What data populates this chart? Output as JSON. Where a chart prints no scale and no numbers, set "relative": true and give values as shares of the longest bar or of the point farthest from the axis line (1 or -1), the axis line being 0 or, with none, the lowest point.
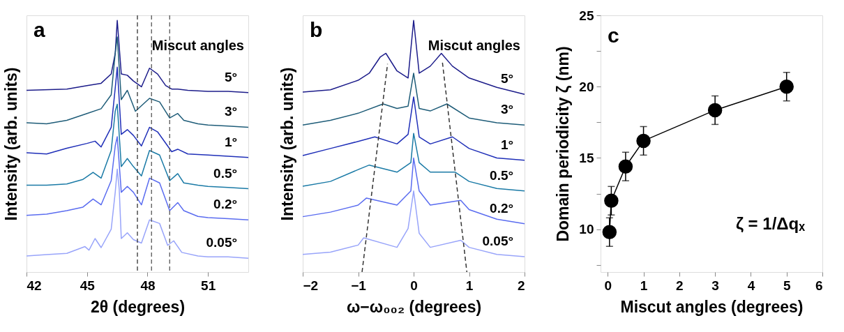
{
  "chart_data": [
    {
      "type": "line",
      "relative": true,
      "xlabel": "2θ (degrees)",
      "ylabel": "Intensity (arb. units)",
      "xlim": [
        42,
        53
      ],
      "xticks": [
        42,
        45,
        48,
        51
      ],
      "grid": false,
      "line_style": "solid",
      "annotations": [
        "a",
        "Miscut angles"
      ],
      "ref_lines": [
        {
          "axis": "x",
          "value": 47.5,
          "line_style": "dashed",
          "color": "#333333"
        },
        {
          "axis": "x",
          "value": 48.2,
          "line_style": "dashed",
          "color": "#555555"
        },
        {
          "axis": "x",
          "value": 49.1,
          "line_style": "dashed",
          "color": "#555555"
        }
      ],
      "series": [
        {
          "name": "5°",
          "color": "#1c1c8a",
          "x": [
            42,
            44,
            45,
            45.7,
            46.2,
            46.4,
            46.5,
            46.7,
            47.0,
            47.3,
            47.7,
            48.1,
            48.5,
            48.9,
            49.2,
            49.5,
            50,
            51,
            52,
            53
          ],
          "values": [
            0.722,
            0.727,
            0.741,
            0.75,
            0.787,
            0.869,
            1.0,
            0.787,
            0.782,
            0.759,
            0.736,
            0.81,
            0.787,
            0.741,
            0.727,
            0.727,
            0.722,
            0.718,
            0.718,
            0.713
          ]
        },
        {
          "name": "3°",
          "color": "#1e5c78",
          "x": [
            42,
            43,
            44,
            45,
            45.7,
            46.2,
            46.4,
            46.5,
            46.7,
            47.0,
            47.4,
            48.1,
            48.6,
            49.1,
            49.5,
            49.8,
            50.5,
            51,
            52,
            53
          ],
          "values": [
            0.593,
            0.589,
            0.603,
            0.63,
            0.649,
            0.704,
            0.869,
            0.934,
            0.685,
            0.722,
            0.639,
            0.69,
            0.676,
            0.612,
            0.63,
            0.603,
            0.589,
            0.584,
            0.58,
            0.575
          ]
        },
        {
          "name": "1°",
          "color": "#1f2fb8",
          "x": [
            42,
            43,
            44,
            45,
            45.4,
            45.7,
            46.2,
            46.4,
            46.5,
            46.7,
            47.0,
            47.3,
            47.7,
            48.1,
            48.5,
            49.0,
            49.2,
            49.5,
            50,
            51,
            52,
            53
          ],
          "values": [
            0.474,
            0.469,
            0.492,
            0.511,
            0.52,
            0.497,
            0.575,
            0.731,
            0.814,
            0.547,
            0.566,
            0.543,
            0.501,
            0.575,
            0.557,
            0.501,
            0.478,
            0.488,
            0.469,
            0.465,
            0.46,
            0.455
          ]
        },
        {
          "name": "0.5°",
          "color": "#1a7aa6",
          "x": [
            42,
            43,
            44,
            44.8,
            45.3,
            45.7,
            46.2,
            46.4,
            46.5,
            46.7,
            47.0,
            47.3,
            47.7,
            48.1,
            48.6,
            49.1,
            49.5,
            49.8,
            50.5,
            51,
            52,
            53
          ],
          "values": [
            0.345,
            0.345,
            0.35,
            0.368,
            0.396,
            0.373,
            0.483,
            0.639,
            0.667,
            0.419,
            0.451,
            0.419,
            0.382,
            0.483,
            0.465,
            0.363,
            0.391,
            0.354,
            0.345,
            0.34,
            0.336,
            0.331
          ]
        },
        {
          "name": "0.2°",
          "color": "#5a6cf0",
          "x": [
            42,
            43,
            44,
            44.8,
            45.3,
            45.7,
            46.2,
            46.4,
            46.5,
            46.7,
            47.0,
            47.3,
            47.7,
            48.1,
            48.6,
            49.1,
            49.5,
            49.8,
            50.5,
            51,
            52,
            53
          ],
          "values": [
            0.225,
            0.23,
            0.244,
            0.258,
            0.29,
            0.267,
            0.363,
            0.501,
            0.538,
            0.317,
            0.34,
            0.317,
            0.267,
            0.373,
            0.354,
            0.244,
            0.276,
            0.244,
            0.221,
            0.216,
            0.212,
            0.207
          ]
        },
        {
          "name": "0.05°",
          "color": "#98a4fa",
          "x": [
            42,
            43,
            44,
            44.9,
            45.1,
            45.4,
            45.7,
            46.2,
            46.4,
            46.5,
            46.6,
            46.7,
            47.0,
            47.3,
            47.7,
            48.1,
            48.6,
            49.0,
            49.3,
            49.7,
            50.5,
            51,
            52,
            53
          ],
          "values": [
            0.064,
            0.069,
            0.074,
            0.101,
            0.087,
            0.133,
            0.097,
            0.17,
            0.317,
            0.409,
            0.327,
            0.133,
            0.156,
            0.129,
            0.115,
            0.207,
            0.193,
            0.106,
            0.124,
            0.078,
            0.064,
            0.06,
            0.06,
            0.055
          ]
        }
      ]
    },
    {
      "type": "line",
      "relative": true,
      "xlabel": "ω−ω₀₀₂ (degrees)",
      "ylabel": "Intensity (arb. units)",
      "xlim": [
        -2,
        2
      ],
      "xticks": [
        -2,
        -1,
        0,
        1,
        2
      ],
      "grid": false,
      "line_style": "solid",
      "annotations": [
        "b",
        "Miscut angles"
      ],
      "series": [
        {
          "name": "5°",
          "color": "#1c1c8a",
          "x": [
            -2,
            -1.5,
            -1.0,
            -0.8,
            -0.6,
            -0.5,
            -0.3,
            -0.1,
            0,
            0.1,
            0.3,
            0.5,
            0.7,
            1.0,
            1.5,
            2
          ],
          "values": [
            0.715,
            0.724,
            0.762,
            0.79,
            0.855,
            0.869,
            0.799,
            0.771,
            1.0,
            0.79,
            0.818,
            0.869,
            0.818,
            0.771,
            0.734,
            0.706
          ]
        },
        {
          "name": "3°",
          "color": "#1e5c78",
          "x": [
            -2,
            -1.5,
            -1,
            -0.55,
            -0.3,
            -0.1,
            0,
            0.1,
            0.3,
            0.6,
            1.0,
            1.5,
            2
          ],
          "values": [
            0.584,
            0.603,
            0.631,
            0.668,
            0.65,
            0.659,
            0.79,
            0.65,
            0.64,
            0.668,
            0.612,
            0.593,
            0.584
          ]
        },
        {
          "name": "1°",
          "color": "#1f2fb8",
          "x": [
            -2,
            -1.5,
            -1,
            -0.7,
            -0.3,
            -0.1,
            0,
            0.1,
            0.3,
            0.7,
            1.0,
            1.5,
            2
          ],
          "values": [
            0.463,
            0.491,
            0.519,
            0.537,
            0.509,
            0.547,
            0.696,
            0.537,
            0.509,
            0.537,
            0.491,
            0.453,
            0.444
          ]
        },
        {
          "name": "0.5°",
          "color": "#1a7aa6",
          "x": [
            -2,
            -1.5,
            -1,
            -0.8,
            -0.3,
            -0.05,
            0,
            0.1,
            0.3,
            0.75,
            1.0,
            1.5,
            2
          ],
          "values": [
            0.341,
            0.36,
            0.407,
            0.425,
            0.397,
            0.435,
            0.551,
            0.435,
            0.397,
            0.397,
            0.36,
            0.332,
            0.322
          ]
        },
        {
          "name": "0.2°",
          "color": "#5a6cf0",
          "x": [
            -2,
            -1.5,
            -1,
            -0.85,
            -0.3,
            -0.05,
            0,
            0.1,
            0.3,
            0.85,
            1.0,
            1.5,
            2
          ],
          "values": [
            0.22,
            0.238,
            0.266,
            0.294,
            0.266,
            0.322,
            0.453,
            0.322,
            0.266,
            0.285,
            0.248,
            0.21,
            0.192
          ]
        },
        {
          "name": "0.05°",
          "color": "#98a4fa",
          "x": [
            -2,
            -1.5,
            -1,
            -0.9,
            -0.3,
            -0.1,
            0,
            0.1,
            0.3,
            0.85,
            1.0,
            1.5,
            2
          ],
          "values": [
            0.07,
            0.079,
            0.107,
            0.136,
            0.098,
            0.173,
            0.322,
            0.154,
            0.098,
            0.126,
            0.098,
            0.07,
            0.061
          ]
        },
        {
          "type": "line",
          "line_style": "dashed",
          "color": "#333333",
          "x": [
            -0.47,
            -0.93
          ],
          "values": [
            0.827,
            0
          ]
        },
        {
          "type": "line",
          "line_style": "dashed",
          "color": "#333333",
          "x": [
            0.52,
            0.96
          ],
          "values": [
            0.832,
            0
          ]
        }
      ]
    },
    {
      "type": "line",
      "xlabel": "Miscut angles (degrees)",
      "ylabel": "Domain periodicity ζ (nm)",
      "xlim": [
        -0.2,
        6
      ],
      "xticks": [
        0,
        1,
        2,
        3,
        4,
        5,
        6
      ],
      "ylim": [
        7,
        25
      ],
      "yticks": [
        {
          "value": 7.5,
          "label": null
        },
        10,
        {
          "value": 12.5,
          "label": null
        },
        15,
        {
          "value": 17.5,
          "label": null
        },
        20,
        {
          "value": 22.5,
          "label": null
        },
        25
      ],
      "grid": false,
      "marker": "circle",
      "line_style": "solid",
      "annotations": [
        "c",
        "ζ = 1/Δqₓ"
      ],
      "series": [
        {
          "color": "#000000",
          "x": [
            0.05,
            0.1,
            0.5,
            1,
            3,
            5
          ],
          "values": [
            9.8,
            12,
            14.4,
            16.2,
            18.35,
            20
          ],
          "errors": [
            1,
            1,
            1,
            1,
            1,
            1
          ]
        }
      ]
    }
  ]
}
